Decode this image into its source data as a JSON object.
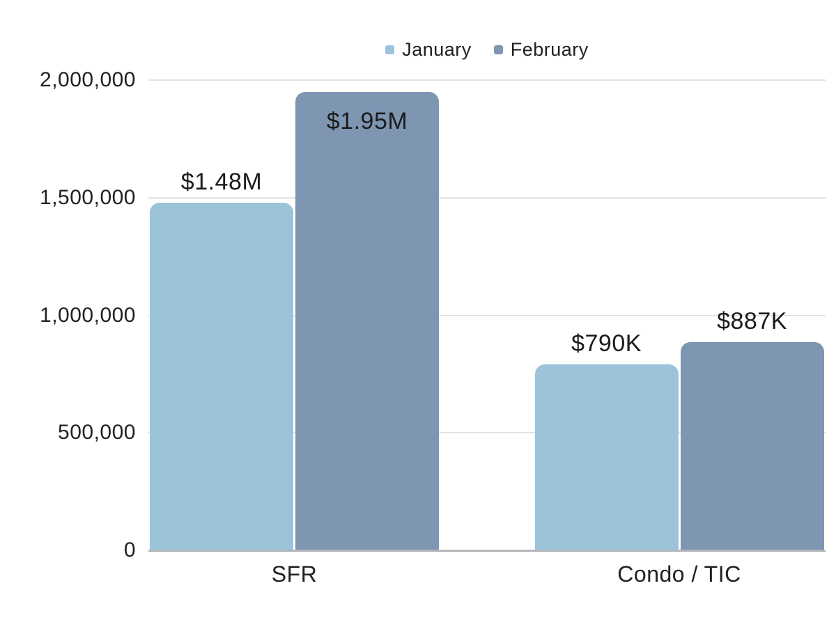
{
  "chart_data": {
    "type": "bar",
    "title": "",
    "categories": [
      "SFR",
      "Condo / TIC"
    ],
    "series": [
      {
        "name": "January",
        "color": "#9bc3da",
        "values": [
          1480000,
          790000
        ],
        "data_labels": [
          "$1.48M",
          "$790K"
        ],
        "label_placement": [
          "above",
          "above"
        ]
      },
      {
        "name": "February",
        "color": "#7e96b2",
        "values": [
          1950000,
          887000
        ],
        "data_labels": [
          "$1.95M",
          "$887K"
        ],
        "label_placement": [
          "inside",
          "above"
        ]
      }
    ],
    "ylim": [
      0,
      2000000
    ],
    "y_ticks": [
      {
        "value": 0,
        "label": "0"
      },
      {
        "value": 500000,
        "label": "500,000"
      },
      {
        "value": 1000000,
        "label": "1,000,000"
      },
      {
        "value": 1500000,
        "label": "1,500,000"
      },
      {
        "value": 2000000,
        "label": "2,000,000"
      }
    ],
    "grid": true,
    "legend_position": "top",
    "xlabel": "",
    "ylabel": ""
  },
  "colors": {
    "background": "#ffffff",
    "text": "#212121",
    "gridline": "#e2e2e2",
    "axis_line": "#b4b7ba"
  }
}
